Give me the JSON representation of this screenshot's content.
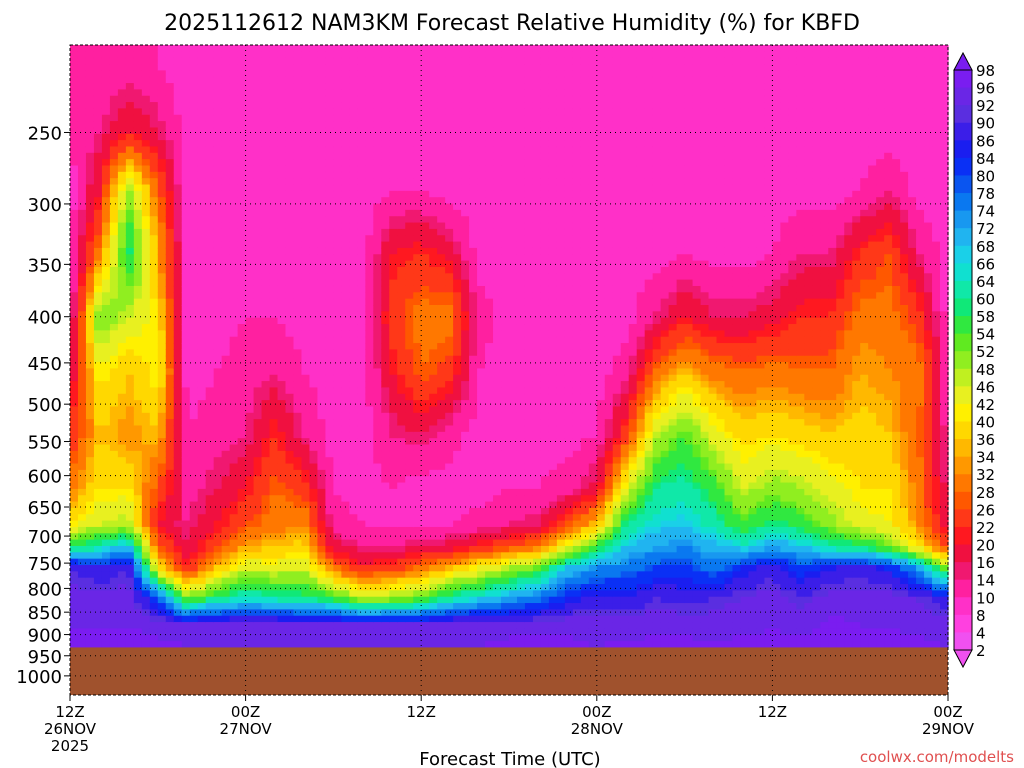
{
  "chart_data": {
    "type": "heatmap",
    "title": "2025112612 NAM3KM Forecast Relative Humidity (%) for KBFD",
    "xlabel": "Forecast Time (UTC)",
    "ylabel": "",
    "y_scale": "log",
    "y_range_hpa": [
      1050,
      200
    ],
    "x_range_hours": [
      0,
      60
    ],
    "grid": true,
    "y_ticks": [
      250,
      300,
      350,
      400,
      450,
      500,
      550,
      600,
      650,
      700,
      750,
      800,
      850,
      900,
      950,
      1000
    ],
    "x_ticks": [
      {
        "hour": 0,
        "lines": [
          "12Z",
          "26NOV",
          "2025"
        ]
      },
      {
        "hour": 12,
        "lines": [
          "00Z",
          "27NOV"
        ]
      },
      {
        "hour": 24,
        "lines": [
          "12Z"
        ]
      },
      {
        "hour": 36,
        "lines": [
          "00Z",
          "28NOV"
        ]
      },
      {
        "hour": 48,
        "lines": [
          "12Z"
        ]
      },
      {
        "hour": 60,
        "lines": [
          "00Z",
          "29NOV"
        ]
      }
    ],
    "surface_pressure_hpa": 930,
    "colorbar": {
      "labels": [
        98,
        96,
        92,
        90,
        86,
        84,
        80,
        78,
        74,
        72,
        68,
        66,
        64,
        60,
        58,
        54,
        52,
        48,
        46,
        42,
        40,
        36,
        34,
        32,
        28,
        26,
        22,
        20,
        16,
        14,
        10,
        8,
        4,
        2
      ],
      "colors": [
        "#7a1df0",
        "#6a26e6",
        "#5a2ee0",
        "#3b1ee8",
        "#1a1ef0",
        "#0a30f5",
        "#0a55f0",
        "#0a78f0",
        "#1898f0",
        "#20b4f0",
        "#1ad0e8",
        "#10e0d0",
        "#10e8a8",
        "#10e878",
        "#30e840",
        "#60ea20",
        "#90ee20",
        "#c0f020",
        "#e8f020",
        "#fff000",
        "#ffd800",
        "#ffb800",
        "#ff9800",
        "#ff7800",
        "#ff5800",
        "#ff3818",
        "#ff1820",
        "#f01040",
        "#f01870",
        "#ff20a0",
        "#ff30c8",
        "#ff40e0",
        "#f050f0"
      ]
    },
    "profiles": [
      {
        "hour": 0,
        "rh": [
          97,
          96,
          94,
          90,
          60,
          40,
          30,
          22,
          16,
          10,
          8,
          8,
          10,
          12
        ]
      },
      {
        "hour": 2,
        "rh": [
          97,
          96,
          94,
          86,
          62,
          46,
          40,
          36,
          42,
          52,
          30,
          20,
          14,
          10
        ]
      },
      {
        "hour": 4,
        "rh": [
          97,
          96,
          94,
          90,
          70,
          48,
          40,
          32,
          36,
          46,
          60,
          50,
          20,
          12
        ]
      },
      {
        "hour": 6,
        "rh": [
          97,
          95,
          80,
          40,
          28,
          20,
          26,
          36,
          42,
          40,
          34,
          28,
          16,
          10
        ]
      },
      {
        "hour": 8,
        "rh": [
          96,
          94,
          50,
          22,
          16,
          14,
          12,
          10,
          8,
          8,
          8,
          8,
          8,
          8
        ]
      },
      {
        "hour": 10,
        "rh": [
          96,
          94,
          60,
          36,
          26,
          20,
          16,
          12,
          10,
          8,
          8,
          8,
          8,
          8
        ]
      },
      {
        "hour": 12,
        "rh": [
          96,
          94,
          64,
          46,
          34,
          26,
          20,
          14,
          12,
          10,
          8,
          8,
          8,
          8
        ]
      },
      {
        "hour": 14,
        "rh": [
          96,
          94,
          62,
          44,
          36,
          30,
          28,
          22,
          14,
          10,
          8,
          8,
          8,
          8
        ]
      },
      {
        "hour": 16,
        "rh": [
          96,
          94,
          60,
          46,
          38,
          32,
          24,
          14,
          10,
          8,
          8,
          8,
          8,
          8
        ]
      },
      {
        "hour": 18,
        "rh": [
          96,
          94,
          56,
          30,
          18,
          12,
          10,
          8,
          8,
          8,
          8,
          8,
          8,
          8
        ]
      },
      {
        "hour": 20,
        "rh": [
          96,
          93,
          46,
          22,
          14,
          10,
          8,
          8,
          8,
          8,
          8,
          8,
          8,
          8
        ]
      },
      {
        "hour": 22,
        "rh": [
          96,
          93,
          50,
          24,
          14,
          10,
          10,
          14,
          20,
          24,
          20,
          10,
          8,
          8
        ]
      },
      {
        "hour": 24,
        "rh": [
          96,
          94,
          52,
          30,
          16,
          10,
          8,
          16,
          28,
          30,
          22,
          10,
          8,
          8
        ]
      },
      {
        "hour": 26,
        "rh": [
          96,
          94,
          62,
          36,
          18,
          10,
          8,
          12,
          24,
          30,
          18,
          8,
          8,
          8
        ]
      },
      {
        "hour": 28,
        "rh": [
          96,
          94,
          66,
          42,
          22,
          12,
          8,
          8,
          10,
          12,
          8,
          8,
          8,
          8
        ]
      },
      {
        "hour": 30,
        "rh": [
          97,
          95,
          72,
          48,
          26,
          14,
          10,
          8,
          8,
          8,
          8,
          8,
          8,
          8
        ]
      },
      {
        "hour": 32,
        "rh": [
          97,
          95,
          76,
          54,
          30,
          16,
          10,
          8,
          8,
          8,
          8,
          8,
          8,
          8
        ]
      },
      {
        "hour": 34,
        "rh": [
          97,
          95,
          84,
          68,
          44,
          26,
          12,
          8,
          8,
          8,
          8,
          8,
          8,
          8
        ]
      },
      {
        "hour": 36,
        "rh": [
          96,
          94,
          88,
          74,
          56,
          36,
          18,
          10,
          8,
          8,
          8,
          8,
          8,
          8
        ]
      },
      {
        "hour": 38,
        "rh": [
          97,
          94,
          86,
          76,
          68,
          60,
          44,
          24,
          12,
          8,
          8,
          8,
          8,
          8
        ]
      },
      {
        "hour": 40,
        "rh": [
          97,
          95,
          90,
          80,
          72,
          66,
          60,
          46,
          28,
          14,
          8,
          8,
          8,
          8
        ]
      },
      {
        "hour": 42,
        "rh": [
          97,
          95,
          88,
          82,
          74,
          68,
          62,
          54,
          36,
          20,
          10,
          8,
          8,
          8
        ]
      },
      {
        "hour": 44,
        "rh": [
          97,
          94,
          90,
          76,
          70,
          62,
          56,
          44,
          30,
          16,
          8,
          8,
          8,
          8
        ]
      },
      {
        "hour": 46,
        "rh": [
          97,
          95,
          92,
          84,
          66,
          54,
          46,
          38,
          28,
          16,
          8,
          8,
          8,
          8
        ]
      },
      {
        "hour": 48,
        "rh": [
          97,
          96,
          94,
          88,
          72,
          60,
          50,
          40,
          30,
          18,
          10,
          8,
          8,
          8
        ]
      },
      {
        "hour": 50,
        "rh": [
          97,
          95,
          90,
          82,
          68,
          56,
          48,
          38,
          28,
          22,
          14,
          8,
          8,
          8
        ]
      },
      {
        "hour": 52,
        "rh": [
          98,
          97,
          94,
          86,
          62,
          50,
          44,
          36,
          28,
          22,
          14,
          8,
          8,
          8
        ]
      },
      {
        "hour": 54,
        "rh": [
          97,
          96,
          94,
          88,
          60,
          44,
          40,
          38,
          34,
          30,
          22,
          10,
          8,
          8
        ]
      },
      {
        "hour": 56,
        "rh": [
          97,
          96,
          94,
          84,
          52,
          42,
          40,
          36,
          32,
          30,
          26,
          14,
          8,
          8
        ]
      },
      {
        "hour": 58,
        "rh": [
          97,
          95,
          92,
          72,
          40,
          32,
          30,
          28,
          30,
          24,
          14,
          8,
          8,
          8
        ]
      },
      {
        "hour": 60,
        "rh": [
          96,
          94,
          86,
          50,
          24,
          16,
          14,
          12,
          10,
          8,
          8,
          8,
          8,
          8
        ]
      }
    ],
    "profile_levels_hpa": [
      930,
      880,
      820,
      760,
      720,
      680,
      620,
      540,
      460,
      400,
      340,
      290,
      250,
      210
    ]
  },
  "footer": {
    "credit": "coolwx.com/modelts"
  }
}
